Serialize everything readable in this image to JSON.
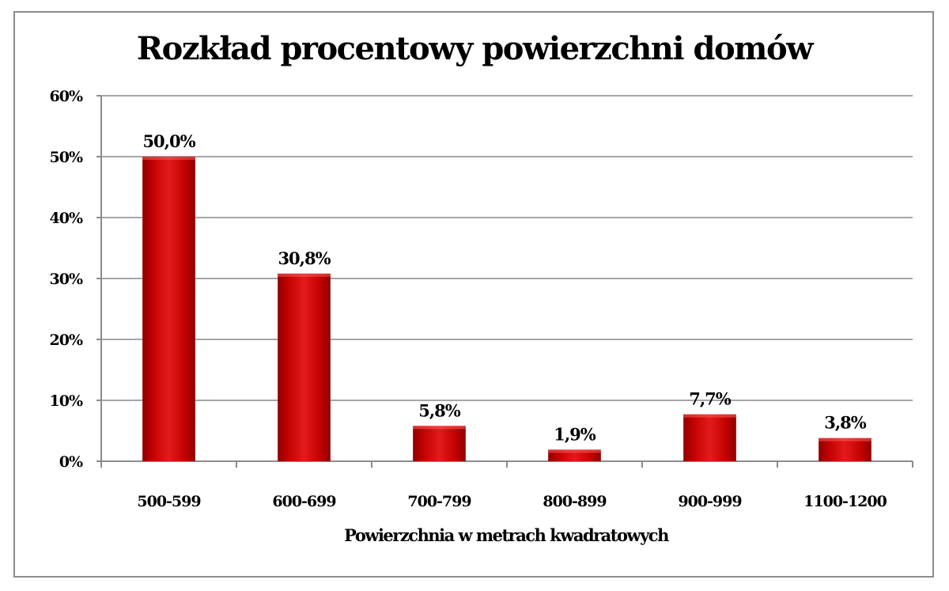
{
  "chart_data": {
    "type": "bar",
    "title": "Rozkład procentowy powierzchni domów",
    "xlabel": "Powierzchnia w metrach kwadratowych",
    "ylabel": "",
    "categories": [
      "500-599",
      "600-699",
      "700-799",
      "800-899",
      "900-999",
      "1100-1200"
    ],
    "values": [
      50.0,
      30.8,
      5.8,
      1.9,
      7.7,
      3.8
    ],
    "data_labels": [
      "50,0%",
      "30,8%",
      "5,8%",
      "1,9%",
      "7,7%",
      "3,8%"
    ],
    "y_ticks": [
      0,
      10,
      20,
      30,
      40,
      50,
      60
    ],
    "y_tick_labels": [
      "0%",
      "10%",
      "20%",
      "30%",
      "40%",
      "50%",
      "60%"
    ],
    "ylim": [
      0,
      60
    ],
    "grid": true,
    "legend": "none",
    "bar_color": "#c80000",
    "grid_color": "#a6a6a6"
  }
}
